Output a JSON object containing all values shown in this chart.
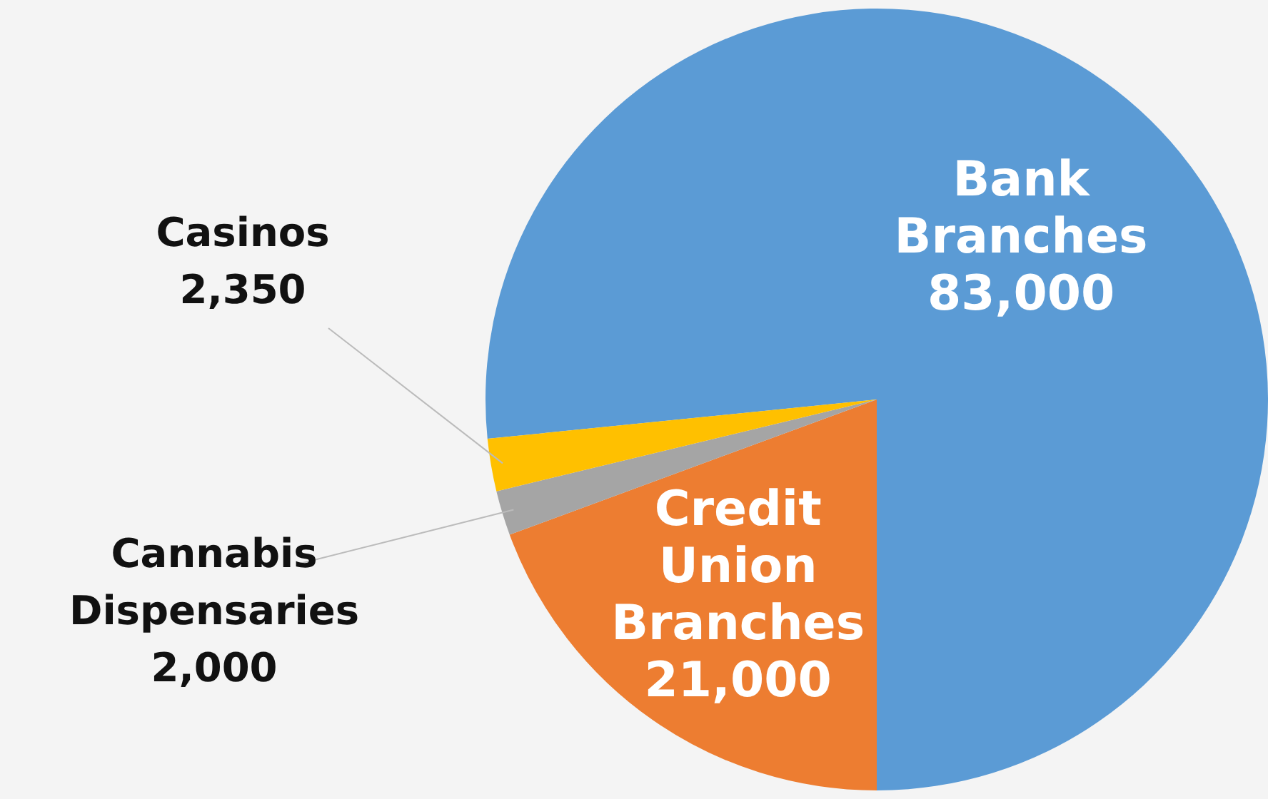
{
  "chart_data": {
    "type": "pie",
    "categories": [
      "Bank Branches",
      "Credit Union Branches",
      "Cannabis Dispensaries",
      "Casinos"
    ],
    "values": [
      83000,
      21000,
      2000,
      2350
    ],
    "colors": [
      "#5b9bd5",
      "#ed7d31",
      "#a5a5a5",
      "#ffc000"
    ],
    "value_labels": [
      "83,000",
      "21,000",
      "2,000",
      "2,350"
    ],
    "legend": false
  }
}
